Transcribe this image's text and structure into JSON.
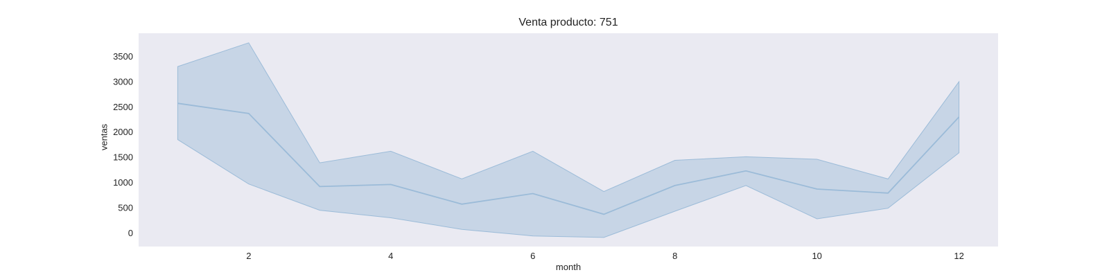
{
  "chart_data": {
    "type": "line",
    "title": "Venta producto: 751",
    "xlabel": "month",
    "ylabel": "ventas",
    "x": [
      1,
      2,
      3,
      4,
      5,
      6,
      7,
      8,
      9,
      10,
      11,
      12
    ],
    "series": [
      {
        "values": [
          2570,
          2370,
          920,
          960,
          570,
          780,
          370,
          940,
          1230,
          870,
          790,
          2300
        ],
        "ci_upper": [
          3300,
          3770,
          1390,
          1620,
          1070,
          1620,
          820,
          1440,
          1510,
          1460,
          1070,
          3000
        ],
        "ci_lower": [
          1850,
          970,
          450,
          300,
          70,
          -60,
          -90,
          430,
          940,
          280,
          490,
          1590
        ]
      }
    ],
    "xticks": [
      2,
      4,
      6,
      8,
      10,
      12
    ],
    "yticks": [
      0,
      500,
      1000,
      1500,
      2000,
      2500,
      3000,
      3500
    ],
    "xlim": [
      0.45,
      12.55
    ],
    "ylim": [
      -270,
      3960
    ],
    "grid": false,
    "colors": {
      "plot_background": "#eaeaf2",
      "line": "#9bbbd8",
      "band_fill": "#a9c3dc",
      "band_stroke": "#9bbbd8"
    }
  }
}
